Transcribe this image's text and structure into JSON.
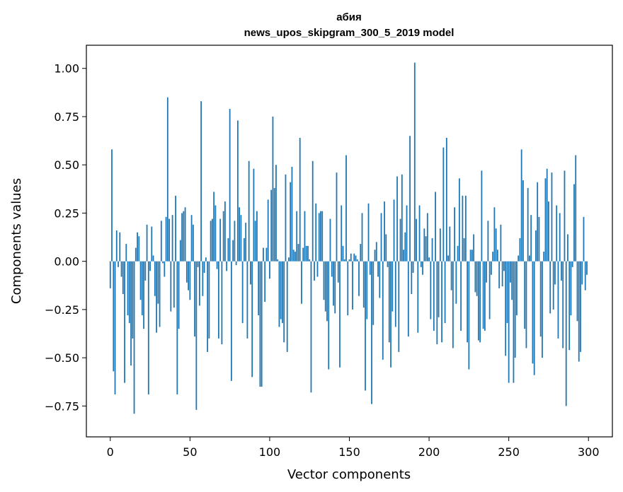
{
  "chart_data": {
    "type": "bar",
    "title": "абия",
    "subtitle": "news_upos_skipgram_300_5_2019 model",
    "xlabel": "Vector components",
    "ylabel": "Components values",
    "xlim": [
      -15,
      315
    ],
    "ylim": [
      -0.91,
      1.12
    ],
    "xticks": [
      0,
      50,
      100,
      150,
      200,
      250,
      300
    ],
    "yticks": [
      -0.75,
      -0.5,
      -0.25,
      0.0,
      0.25,
      0.5,
      0.75,
      1.0
    ],
    "ytick_labels": [
      "−0.75",
      "−0.50",
      "−0.25",
      "0.00",
      "0.25",
      "0.50",
      "0.75",
      "1.00"
    ],
    "bar_color": "#1f77b4",
    "grid": false,
    "values": [
      -0.14,
      0.58,
      -0.57,
      -0.69,
      0.16,
      -0.03,
      0.15,
      -0.08,
      -0.17,
      -0.63,
      0.09,
      -0.28,
      -0.32,
      -0.54,
      -0.4,
      -0.79,
      0.07,
      0.15,
      0.13,
      -0.2,
      -0.28,
      -0.35,
      -0.1,
      0.19,
      -0.69,
      -0.05,
      0.18,
      0.03,
      -0.18,
      -0.37,
      -0.22,
      -0.34,
      0.21,
      -0.01,
      -0.08,
      0.23,
      0.85,
      0.22,
      -0.26,
      0.24,
      -0.24,
      0.34,
      -0.69,
      -0.35,
      0.11,
      0.25,
      0.26,
      0.28,
      -0.11,
      -0.15,
      -0.2,
      0.24,
      0.19,
      -0.39,
      -0.77,
      -0.03,
      -0.23,
      0.83,
      -0.18,
      -0.06,
      0.02,
      -0.47,
      -0.4,
      0.21,
      0.22,
      0.36,
      0.29,
      -0.04,
      -0.4,
      0.22,
      -0.43,
      0.26,
      0.31,
      -0.05,
      0.12,
      0.79,
      -0.62,
      0.11,
      0.21,
      -0.02,
      0.73,
      0.28,
      0.24,
      -0.32,
      0.12,
      0.2,
      -0.4,
      0.52,
      -0.12,
      -0.6,
      0.48,
      0.21,
      0.26,
      -0.28,
      -0.65,
      -0.65,
      0.07,
      -0.21,
      0.07,
      0.32,
      -0.09,
      0.37,
      0.75,
      0.38,
      0.5,
      0.01,
      -0.34,
      -0.3,
      -0.32,
      -0.42,
      0.45,
      -0.47,
      0.02,
      0.41,
      0.49,
      0.06,
      0.05,
      0.26,
      0.09,
      0.64,
      -0.22,
      0.07,
      0.26,
      0.08,
      0.08,
      0.01,
      -0.68,
      0.52,
      -0.1,
      0.3,
      -0.08,
      0.25,
      0.26,
      0.26,
      -0.2,
      -0.26,
      -0.31,
      -0.56,
      0.22,
      -0.08,
      -0.23,
      -0.27,
      0.46,
      -0.11,
      -0.55,
      0.29,
      0.08,
      0.01,
      0.55,
      -0.28,
      0.01,
      0.04,
      -0.25,
      0.04,
      0.03,
      0.01,
      -0.18,
      0.09,
      0.25,
      -0.24,
      -0.67,
      -0.3,
      0.3,
      -0.07,
      -0.74,
      -0.33,
      0.06,
      0.1,
      -0.08,
      -0.19,
      0.25,
      -0.51,
      0.31,
      0.14,
      -0.03,
      -0.42,
      -0.55,
      -0.26,
      0.32,
      -0.34,
      0.44,
      -0.47,
      0.22,
      0.45,
      0.06,
      0.15,
      0.29,
      -0.39,
      0.65,
      -0.17,
      -0.06,
      1.03,
      0.22,
      -0.37,
      0.29,
      -0.03,
      -0.07,
      0.17,
      0.13,
      0.25,
      0.02,
      -0.3,
      0.12,
      -0.36,
      0.36,
      -0.43,
      -0.29,
      0.17,
      -0.42,
      0.59,
      -0.32,
      0.64,
      0.03,
      0.18,
      -0.15,
      -0.45,
      0.28,
      -0.22,
      0.08,
      0.43,
      -0.36,
      0.34,
      0.12,
      0.34,
      -0.42,
      -0.56,
      0.06,
      0.06,
      0.14,
      -0.16,
      -0.18,
      -0.41,
      -0.42,
      0.47,
      -0.35,
      -0.36,
      -0.11,
      0.21,
      -0.3,
      -0.07,
      0.05,
      0.28,
      0.17,
      0.06,
      -0.14,
      0.19,
      -0.13,
      -0.05,
      -0.49,
      -0.32,
      -0.63,
      -0.11,
      -0.2,
      -0.63,
      -0.5,
      -0.28,
      0.03,
      0.12,
      0.58,
      0.42,
      -0.35,
      -0.45,
      0.38,
      0.03,
      0.24,
      -0.53,
      -0.59,
      0.16,
      0.41,
      0.23,
      -0.39,
      -0.5,
      0.05,
      0.43,
      0.48,
      0.31,
      -0.27,
      0.46,
      -0.25,
      -0.12,
      0.29,
      -0.4,
      0.25,
      -0.1,
      -0.45,
      0.47,
      -0.75,
      0.14,
      -0.46,
      -0.28,
      -0.03,
      0.4,
      0.55,
      -0.31,
      -0.52,
      -0.47,
      -0.12,
      0.23,
      -0.15,
      -0.07
    ]
  }
}
